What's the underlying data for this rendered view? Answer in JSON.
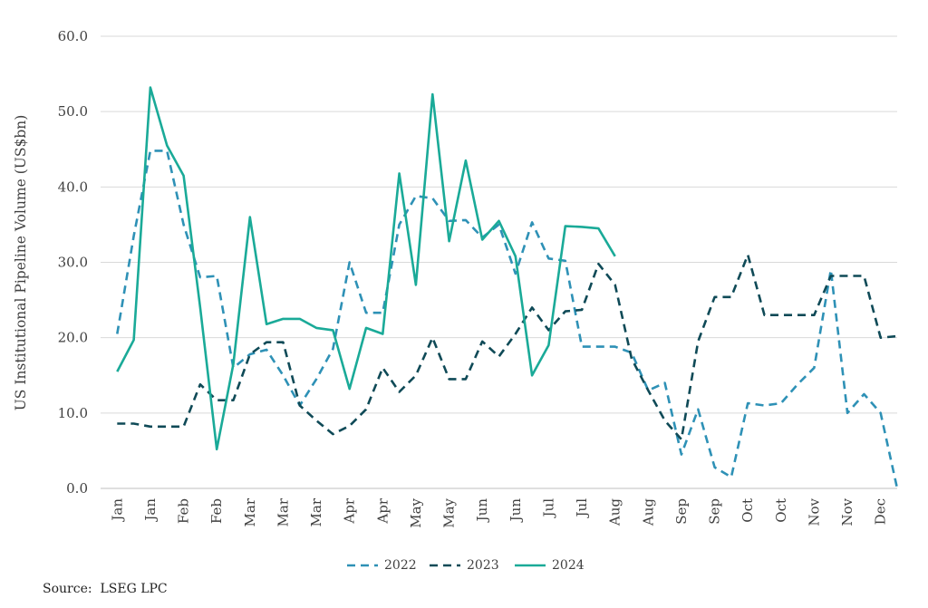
{
  "chart_data": {
    "type": "line",
    "ylabel": "US Institutional Pipeline Volume (US$bn)",
    "ylim": [
      0,
      60
    ],
    "yticks": [
      "0.0",
      "10.0",
      "20.0",
      "30.0",
      "40.0",
      "50.0",
      "60.0"
    ],
    "categories": [
      "Jan",
      "Jan",
      "Feb",
      "Feb",
      "Mar",
      "Mar",
      "Mar",
      "Apr",
      "Apr",
      "May",
      "May",
      "Jun",
      "Jun",
      "Jul",
      "Jul",
      "Aug",
      "Aug",
      "Sep",
      "Sep",
      "Oct",
      "Oct",
      "Nov",
      "Nov",
      "Dec"
    ],
    "grid": "horizontal",
    "legend_position": "bottom",
    "series": [
      {
        "name": "2022",
        "style": "dashed",
        "color": "#2e91b6",
        "x": [
          0,
          0.5,
          1,
          1.5,
          2,
          2.5,
          3,
          3.5,
          4,
          4.5,
          5,
          5.5,
          6,
          6.5,
          7,
          7.5,
          8,
          8.5,
          9,
          9.5,
          10,
          10.5,
          11,
          11.5,
          12,
          12.5,
          13,
          13.5,
          14,
          14.5,
          15,
          15.5,
          16,
          16.5,
          17,
          17.5,
          18,
          18.5,
          19,
          19.5,
          20,
          20.5,
          21,
          21.5,
          22,
          22.5,
          23,
          23.5
        ],
        "values": [
          20.5,
          33.5,
          44.8,
          44.8,
          35.0,
          28.0,
          28.2,
          16.0,
          17.8,
          18.4,
          15.0,
          11.0,
          14.5,
          18.5,
          30.0,
          23.3,
          23.3,
          35.0,
          38.8,
          38.5,
          35.5,
          35.6,
          33.3,
          35.0,
          28.5,
          35.3,
          30.5,
          30.2,
          18.8,
          18.8,
          18.8,
          18.0,
          13.0,
          14.0,
          4.5,
          10.5,
          2.8,
          1.5,
          11.3,
          11.0,
          11.3,
          13.8,
          16.0,
          29.0,
          10.0,
          12.5,
          10.0,
          0.0
        ]
      },
      {
        "name": "2023",
        "style": "dashed",
        "color": "#0f4a57",
        "x": [
          0,
          0.5,
          1,
          1.5,
          2,
          2.5,
          3,
          3.5,
          4,
          4.5,
          5,
          5.5,
          6,
          6.5,
          7,
          7.5,
          8,
          8.5,
          9,
          9.5,
          10,
          10.5,
          11,
          11.5,
          12,
          12.5,
          13,
          13.5,
          14,
          14.5,
          15,
          15.5,
          16,
          16.5,
          17,
          17.5,
          18,
          18.5,
          19,
          19.5,
          20,
          20.5,
          21,
          21.5,
          22,
          22.5,
          23,
          23.5
        ],
        "values": [
          8.6,
          8.6,
          8.2,
          8.2,
          8.2,
          13.8,
          11.7,
          11.7,
          17.8,
          19.4,
          19.4,
          11.0,
          9.0,
          7.2,
          8.3,
          10.5,
          16.0,
          12.8,
          15.0,
          20.0,
          14.5,
          14.5,
          19.5,
          17.5,
          20.5,
          24.0,
          21.0,
          23.5,
          23.7,
          29.8,
          27.0,
          17.2,
          13.0,
          9.0,
          6.5,
          19.5,
          25.4,
          25.4,
          31.0,
          23.0,
          23.0,
          23.0,
          23.0,
          28.2,
          28.2,
          28.2,
          20.0,
          20.2
        ]
      },
      {
        "name": "2024",
        "style": "solid",
        "color": "#1aaa98",
        "x": [
          0,
          0.5,
          1,
          1.5,
          2,
          2.5,
          3,
          3.5,
          4,
          4.5,
          5,
          5.5,
          6,
          6.5,
          7,
          7.5,
          8,
          8.5,
          9,
          9.5,
          10,
          10.5,
          11,
          11.5,
          12,
          12.5,
          13,
          13.5,
          14,
          14.5,
          15,
          15.5
        ],
        "values": [
          15.5,
          19.7,
          53.2,
          45.5,
          41.5,
          24.0,
          5.2,
          16.5,
          36.0,
          21.8,
          22.5,
          22.5,
          21.3,
          21.0,
          13.2,
          21.3,
          20.5,
          41.8,
          27.0,
          52.3,
          32.8,
          43.5,
          33.0,
          35.5,
          30.8,
          15.0,
          19.0,
          34.8,
          34.7,
          34.5,
          30.8,
          null
        ]
      }
    ]
  },
  "source": "Source:  LSEG LPC"
}
